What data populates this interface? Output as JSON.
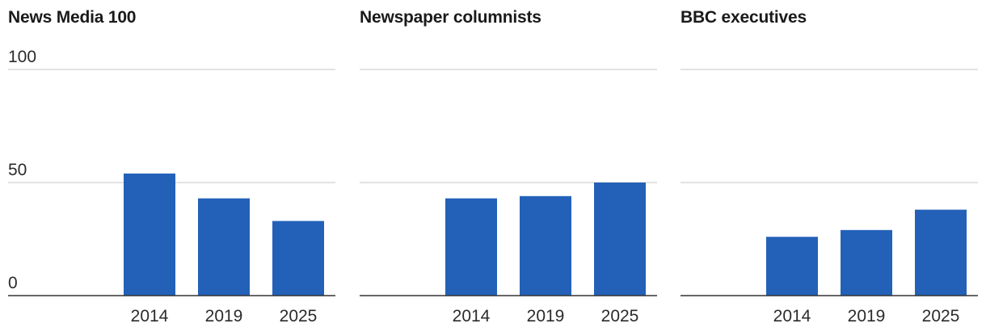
{
  "colors": {
    "bar": "#2361b9",
    "grid": "#d9d9d9",
    "axis": "#333333"
  },
  "chart_data": [
    {
      "type": "bar",
      "title": "News Media 100",
      "categories": [
        "2014",
        "2019",
        "2025"
      ],
      "values": [
        54,
        43,
        33
      ],
      "ylim": [
        0,
        100
      ],
      "yticks": [
        100,
        50,
        0
      ],
      "ytick_labels": [
        "100",
        "50",
        "0"
      ],
      "xlabel": "",
      "ylabel": "",
      "grid": true
    },
    {
      "type": "bar",
      "title": "Newspaper columnists",
      "categories": [
        "2014",
        "2019",
        "2025"
      ],
      "values": [
        43,
        44,
        50
      ],
      "ylim": [
        0,
        100
      ],
      "yticks": [
        100,
        50,
        0
      ],
      "ytick_labels": [],
      "xlabel": "",
      "ylabel": "",
      "grid": true
    },
    {
      "type": "bar",
      "title": "BBC executives",
      "categories": [
        "2014",
        "2019",
        "2025"
      ],
      "values": [
        26,
        29,
        38
      ],
      "ylim": [
        0,
        100
      ],
      "yticks": [
        100,
        50,
        0
      ],
      "ytick_labels": [],
      "xlabel": "",
      "ylabel": "",
      "grid": true
    }
  ]
}
